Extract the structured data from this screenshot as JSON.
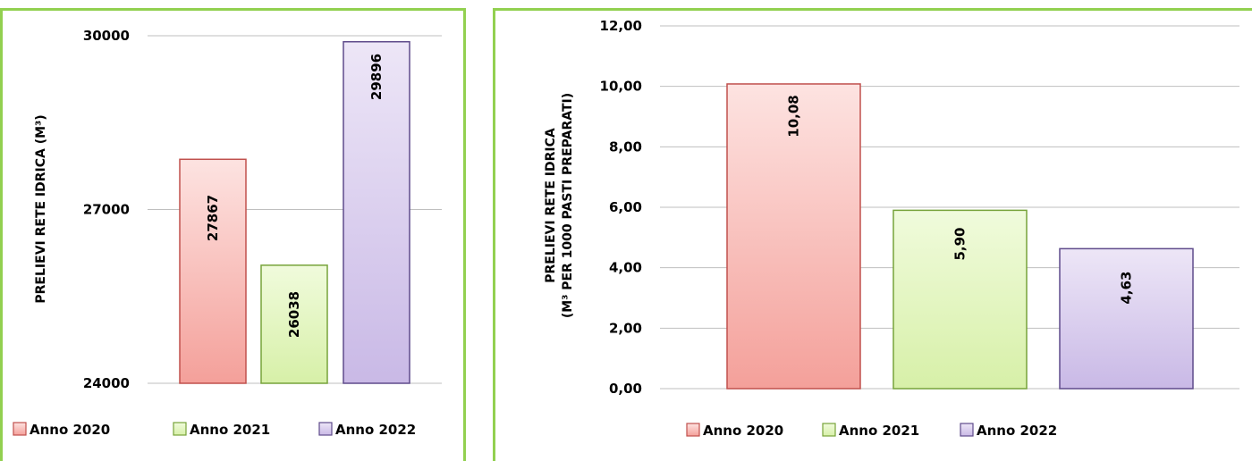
{
  "chart_data": [
    {
      "type": "bar",
      "categories": [
        "Anno 2020",
        "Anno 2021",
        "Anno 2022"
      ],
      "values": [
        27867,
        26038,
        29896
      ],
      "value_labels": [
        "27867",
        "26038",
        "29896"
      ],
      "ylabel_lines": [
        "PRELIEVI RETE IDRICA (M³)"
      ],
      "ylim": [
        24000,
        30000
      ],
      "yticks": [
        24000,
        27000,
        30000
      ],
      "ytick_labels": [
        "24000",
        "27000",
        "30000"
      ],
      "grid": true,
      "legend_position": "bottom",
      "colors": [
        "#f4a09a",
        "#d7f0a8",
        "#c9b9e6"
      ],
      "border_colors": [
        "#c0504d",
        "#77a33a",
        "#5f4b8b"
      ]
    },
    {
      "type": "bar",
      "categories": [
        "Anno 2020",
        "Anno 2021",
        "Anno 2022"
      ],
      "values": [
        10.08,
        5.9,
        4.63
      ],
      "value_labels": [
        "10,08",
        "5,90",
        "4,63"
      ],
      "ylabel_lines": [
        "PRELIEVI RETE IDRICA",
        "(M³ PER 1000 PASTI PREPARATI)"
      ],
      "ylim": [
        0,
        12
      ],
      "yticks": [
        0,
        2,
        4,
        6,
        8,
        10,
        12
      ],
      "ytick_labels": [
        "0,00",
        "2,00",
        "4,00",
        "6,00",
        "8,00",
        "10,00",
        "12,00"
      ],
      "grid": true,
      "legend_position": "bottom",
      "colors": [
        "#f4a09a",
        "#d7f0a8",
        "#c9b9e6"
      ],
      "border_colors": [
        "#c0504d",
        "#77a33a",
        "#5f4b8b"
      ]
    }
  ]
}
